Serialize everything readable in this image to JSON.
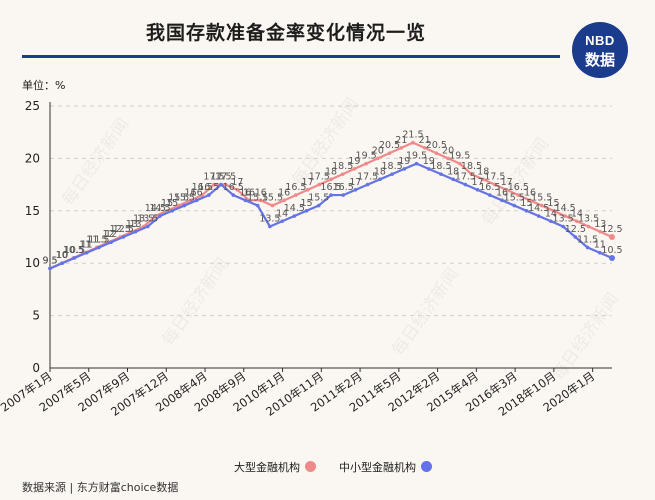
{
  "header": {
    "title": "我国存款准备金率变化情况一览",
    "logo_top": "NBD",
    "logo_bottom": "数据"
  },
  "unit_label": "单位：%",
  "source": "数据来源 | 东方财富choice数据",
  "colors": {
    "large": "#f08a8a",
    "small": "#6473e6",
    "accent": "#1b3b8c"
  },
  "watermark": "每日经济新闻",
  "chart_data": {
    "type": "line",
    "xlabel": "",
    "ylabel": "",
    "ylim": [
      0,
      25
    ],
    "yticks": [
      0,
      5,
      10,
      15,
      20,
      25
    ],
    "grid": true,
    "legend_position": "bottom-right",
    "x_tick_labels": [
      "2007年1月",
      "2007年5月",
      "2007年9月",
      "2007年12月",
      "2008年4月",
      "2008年9月",
      "2010年1月",
      "2010年11月",
      "2011年2月",
      "2011年5月",
      "2012年2月",
      "2015年4月",
      "2016年3月",
      "2018年10月",
      "2020年1月"
    ],
    "series": [
      {
        "name": "大型金融机构",
        "values": [
          9.5,
          10,
          10.5,
          11,
          11.5,
          12,
          12.5,
          13,
          13.5,
          14.5,
          15,
          15.5,
          16,
          16.5,
          17.5,
          17.5,
          17,
          16,
          16,
          15.5,
          16,
          16.5,
          17,
          17.5,
          18,
          18.5,
          19,
          19.5,
          20,
          20.5,
          21,
          21.5,
          21,
          20.5,
          20,
          19.5,
          18.5,
          18,
          17.5,
          17,
          16.5,
          16,
          15.5,
          15,
          14.5,
          14,
          13.5,
          13,
          12.5
        ],
        "labels": [
          "9.5",
          "10",
          "10.5",
          "11",
          "11.5",
          "12",
          "12.5",
          "13",
          "13.5",
          "14.5",
          "15",
          "15.5",
          "16",
          "16.5",
          "17.5",
          "17.5",
          "17",
          "16",
          "16",
          "15.5",
          "16",
          "16.5",
          "17",
          "17.5",
          "18",
          "18.5",
          "19",
          "19.5",
          "20",
          "20.5",
          "21",
          "21.5",
          "21",
          "20.5",
          "20",
          "19.5",
          "18.5",
          "18",
          "17.5",
          "17",
          "16.5",
          "16",
          "15.5",
          "15",
          "14.5",
          "14",
          "13.5",
          "13",
          "12.5"
        ]
      },
      {
        "name": "中小型金融机构",
        "values": [
          9.5,
          10,
          10.5,
          11,
          11.5,
          12,
          12.5,
          13,
          13.5,
          14.5,
          15,
          15.5,
          16,
          16.5,
          17.5,
          16.5,
          16,
          15.5,
          13.5,
          14,
          14.5,
          15,
          15.5,
          16.5,
          16.5,
          17,
          17.5,
          18,
          18.5,
          19,
          19.5,
          19,
          18.5,
          18,
          17.5,
          17,
          16.5,
          16,
          15.5,
          15,
          14.5,
          14,
          13.5,
          12.5,
          11.5,
          11,
          10.5
        ],
        "labels": [
          "9.5",
          "10",
          "10.5",
          "11",
          "11.5",
          "12",
          "12.5",
          "13",
          "13.5",
          "14.5",
          "15",
          "15.5",
          "16",
          "16.5",
          "17.5",
          "16.5",
          "16",
          "15.5",
          "13.5",
          "14",
          "14.5",
          "15",
          "15.5",
          "16.5",
          "16.5",
          "17",
          "17.5",
          "18",
          "18.5",
          "19",
          "19.5",
          "19",
          "18.5",
          "18",
          "17.5",
          "17",
          "16.5",
          "16",
          "15.5",
          "15",
          "14.5",
          "14",
          "13.5",
          "12.5",
          "11.5",
          "11",
          "10.5"
        ]
      }
    ]
  }
}
